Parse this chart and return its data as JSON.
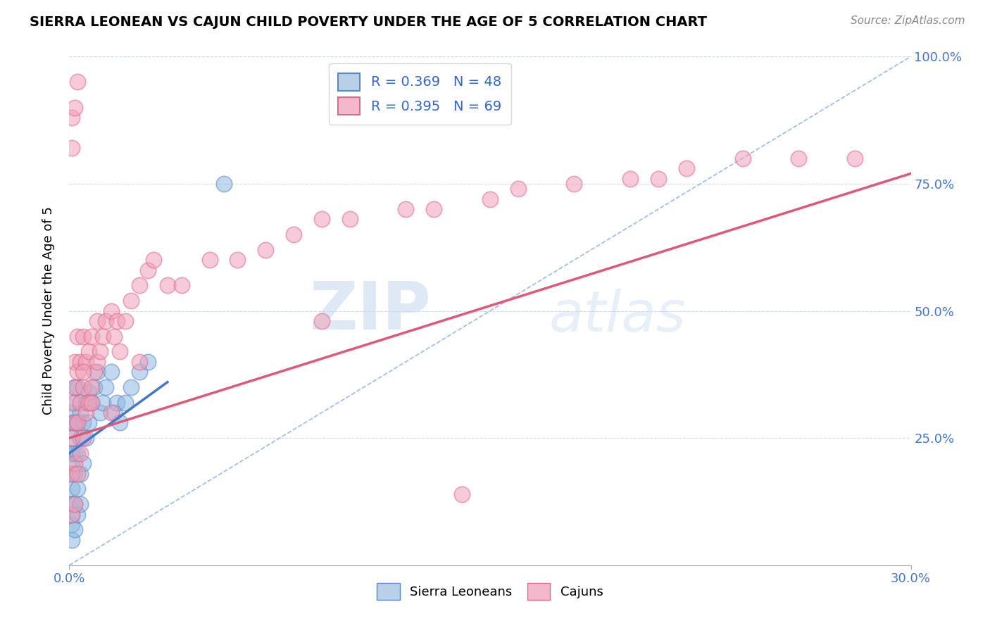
{
  "title": "SIERRA LEONEAN VS CAJUN CHILD POVERTY UNDER THE AGE OF 5 CORRELATION CHART",
  "source": "Source: ZipAtlas.com",
  "ylabel_label": "Child Poverty Under the Age of 5",
  "blue_R": "R = 0.369",
  "blue_N": "N = 48",
  "pink_R": "R = 0.395",
  "pink_N": "N = 69",
  "blue_color": "#90b8e0",
  "pink_color": "#f0a0b8",
  "blue_edge": "#5588cc",
  "pink_edge": "#e06888",
  "blue_line_color": "#4477cc",
  "pink_line_color": "#e05878",
  "diag_color": "#99bbee",
  "watermark_zip": "ZIP",
  "watermark_atlas": "atlas",
  "xlim": [
    0.0,
    0.3
  ],
  "ylim": [
    0.0,
    1.0
  ],
  "blue_scatter_x": [
    0.001,
    0.001,
    0.001,
    0.001,
    0.001,
    0.001,
    0.001,
    0.001,
    0.001,
    0.001,
    0.001,
    0.002,
    0.002,
    0.002,
    0.002,
    0.002,
    0.002,
    0.002,
    0.003,
    0.003,
    0.003,
    0.003,
    0.003,
    0.004,
    0.004,
    0.004,
    0.004,
    0.005,
    0.005,
    0.006,
    0.006,
    0.007,
    0.007,
    0.008,
    0.009,
    0.01,
    0.011,
    0.012,
    0.013,
    0.015,
    0.016,
    0.017,
    0.018,
    0.02,
    0.022,
    0.025,
    0.028,
    0.055
  ],
  "blue_scatter_y": [
    0.05,
    0.08,
    0.1,
    0.12,
    0.15,
    0.18,
    0.2,
    0.22,
    0.25,
    0.28,
    0.3,
    0.07,
    0.12,
    0.18,
    0.22,
    0.28,
    0.32,
    0.35,
    0.1,
    0.15,
    0.22,
    0.28,
    0.35,
    0.12,
    0.18,
    0.25,
    0.3,
    0.2,
    0.28,
    0.25,
    0.32,
    0.28,
    0.34,
    0.32,
    0.35,
    0.38,
    0.3,
    0.32,
    0.35,
    0.38,
    0.3,
    0.32,
    0.28,
    0.32,
    0.35,
    0.38,
    0.4,
    0.75
  ],
  "pink_scatter_x": [
    0.001,
    0.001,
    0.001,
    0.001,
    0.002,
    0.002,
    0.002,
    0.002,
    0.002,
    0.003,
    0.003,
    0.003,
    0.003,
    0.004,
    0.004,
    0.004,
    0.005,
    0.005,
    0.005,
    0.006,
    0.006,
    0.007,
    0.007,
    0.008,
    0.008,
    0.009,
    0.01,
    0.01,
    0.011,
    0.012,
    0.013,
    0.015,
    0.016,
    0.017,
    0.018,
    0.02,
    0.022,
    0.025,
    0.028,
    0.03,
    0.035,
    0.04,
    0.05,
    0.06,
    0.07,
    0.08,
    0.09,
    0.1,
    0.12,
    0.13,
    0.15,
    0.16,
    0.18,
    0.2,
    0.21,
    0.22,
    0.24,
    0.26,
    0.28,
    0.001,
    0.001,
    0.002,
    0.003,
    0.005,
    0.008,
    0.015,
    0.025,
    0.09,
    0.14
  ],
  "pink_scatter_y": [
    0.1,
    0.18,
    0.25,
    0.32,
    0.12,
    0.2,
    0.28,
    0.35,
    0.4,
    0.18,
    0.28,
    0.38,
    0.45,
    0.22,
    0.32,
    0.4,
    0.25,
    0.35,
    0.45,
    0.3,
    0.4,
    0.32,
    0.42,
    0.35,
    0.45,
    0.38,
    0.4,
    0.48,
    0.42,
    0.45,
    0.48,
    0.5,
    0.45,
    0.48,
    0.42,
    0.48,
    0.52,
    0.55,
    0.58,
    0.6,
    0.55,
    0.55,
    0.6,
    0.6,
    0.62,
    0.65,
    0.68,
    0.68,
    0.7,
    0.7,
    0.72,
    0.74,
    0.75,
    0.76,
    0.76,
    0.78,
    0.8,
    0.8,
    0.8,
    0.82,
    0.88,
    0.9,
    0.95,
    0.38,
    0.32,
    0.3,
    0.4,
    0.48,
    0.14
  ],
  "blue_line_x": [
    0.0,
    0.035
  ],
  "blue_line_y": [
    0.22,
    0.36
  ],
  "pink_line_x": [
    0.0,
    0.3
  ],
  "pink_line_y": [
    0.25,
    0.77
  ],
  "diag_line_x": [
    0.0,
    0.3
  ],
  "diag_line_y": [
    0.0,
    1.0
  ]
}
